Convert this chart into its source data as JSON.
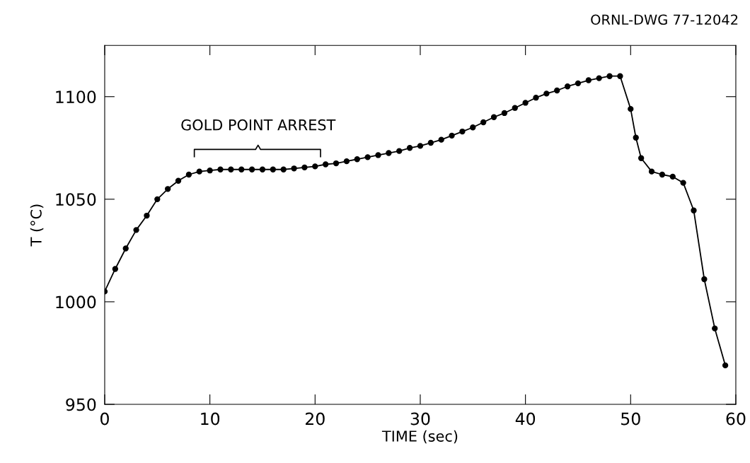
{
  "chart_data": {
    "type": "line",
    "xlabel": "TIME (sec)",
    "ylabel": "T (°C)",
    "annotations": [
      "ORNL-DWG 77-12042",
      "GOLD POINT ARREST"
    ],
    "xlim": [
      0,
      60
    ],
    "ylim": [
      950,
      1125
    ],
    "xticks": [
      0,
      10,
      20,
      30,
      40,
      50,
      60
    ],
    "yticks": [
      950,
      1000,
      1050,
      1100
    ],
    "marker": "circle",
    "line_style": "solid",
    "grid": false,
    "series": [
      {
        "color": "#000000",
        "x": [
          0,
          1,
          2,
          3,
          4,
          5,
          6,
          7,
          8,
          9,
          10,
          11,
          12,
          13,
          14,
          15,
          16,
          17,
          18,
          19,
          20,
          21,
          22,
          23,
          24,
          25,
          26,
          27,
          28,
          29,
          30,
          31,
          32,
          33,
          34,
          35,
          36,
          37,
          38,
          39,
          40,
          41,
          42,
          43,
          44,
          45,
          46,
          47,
          48,
          49,
          50,
          50.5,
          51,
          52,
          53,
          54,
          55,
          56,
          57,
          58,
          59
        ],
        "values": [
          1005,
          1016,
          1026,
          1035,
          1042,
          1050,
          1055,
          1059,
          1062,
          1063.5,
          1064,
          1064.5,
          1064.5,
          1064.5,
          1064.5,
          1064.5,
          1064.5,
          1064.5,
          1065,
          1065.5,
          1066,
          1067,
          1067.5,
          1068.5,
          1069.5,
          1070.5,
          1071.5,
          1072.5,
          1073.5,
          1075,
          1076,
          1077.5,
          1079,
          1081,
          1083,
          1085,
          1087.5,
          1090,
          1092,
          1094.5,
          1097,
          1099.5,
          1101.5,
          1103,
          1105,
          1106.5,
          1108,
          1109,
          1110,
          1110,
          1094,
          1080,
          1070,
          1063.5,
          1062,
          1061,
          1058,
          1044.5,
          1011,
          987,
          969
        ]
      }
    ]
  }
}
